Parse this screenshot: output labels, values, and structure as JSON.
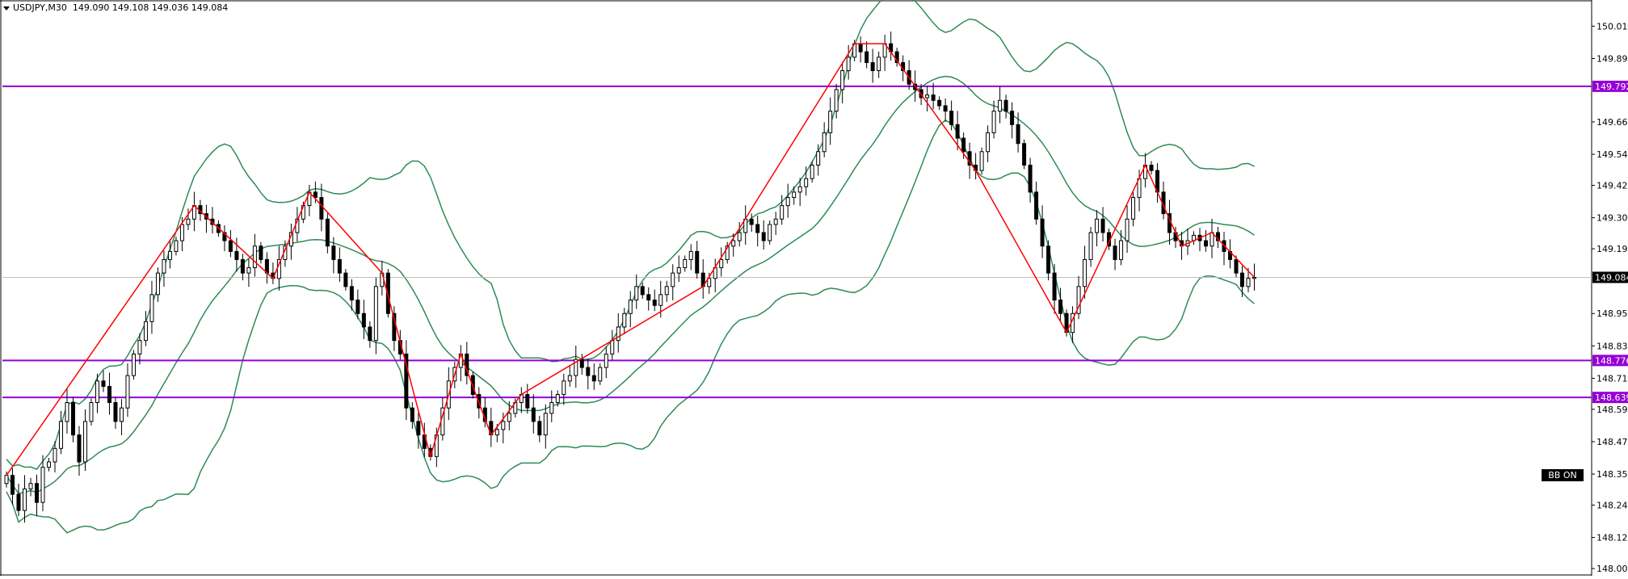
{
  "header": {
    "symbol": "USDJPY,M30",
    "ohlc": "149.090 149.108 149.036 149.084"
  },
  "badge": {
    "label": "BB ON"
  },
  "colors": {
    "background": "#ffffff",
    "candle_body_bull": "#ffffff",
    "candle_body_bear": "#000000",
    "candle_outline": "#000000",
    "zigzag": "#ff0000",
    "bollinger": "#2e8b57",
    "level_line": "#9400d3",
    "current_price_line": "#c0c0c0",
    "price_label_bg": "#000000"
  },
  "chart_data": {
    "type": "candlestick",
    "title": "USDJPY,M30",
    "ylim": [
      147.99,
      150.1
    ],
    "y_ticks": [
      "150.015",
      "149.895",
      "149.660",
      "149.540",
      "149.425",
      "149.305",
      "149.190",
      "148.950",
      "148.830",
      "148.710",
      "148.595",
      "148.475",
      "148.355",
      "148.240",
      "148.120",
      "148.005"
    ],
    "current_price": "149.084",
    "horizontal_levels": [
      "149.792",
      "148.776",
      "148.639"
    ],
    "grid": false,
    "candles_close_estimate": [
      148.35,
      148.28,
      148.22,
      148.3,
      148.32,
      148.25,
      148.38,
      148.4,
      148.45,
      148.55,
      148.62,
      148.5,
      148.4,
      148.55,
      148.62,
      148.7,
      148.68,
      148.62,
      148.55,
      148.6,
      148.72,
      148.8,
      148.85,
      148.92,
      149.02,
      149.1,
      149.15,
      149.18,
      149.22,
      149.28,
      149.3,
      149.35,
      149.32,
      149.3,
      149.28,
      149.25,
      149.22,
      149.18,
      149.15,
      149.1,
      149.12,
      149.2,
      149.15,
      149.1,
      149.08,
      149.15,
      149.2,
      149.25,
      149.3,
      149.35,
      149.4,
      149.38,
      149.3,
      149.2,
      149.15,
      149.1,
      149.05,
      149.0,
      148.95,
      148.9,
      148.85,
      149.05,
      149.1,
      148.95,
      148.85,
      148.8,
      148.6,
      148.55,
      148.5,
      148.45,
      148.42,
      148.5,
      148.6,
      148.7,
      148.75,
      148.8,
      148.72,
      148.65,
      148.6,
      148.55,
      148.5,
      148.52,
      148.55,
      148.58,
      148.62,
      148.65,
      148.6,
      148.55,
      148.5,
      148.58,
      148.62,
      148.65,
      148.7,
      148.72,
      148.78,
      148.75,
      148.72,
      148.7,
      148.75,
      148.8,
      148.85,
      148.9,
      148.95,
      149.0,
      149.05,
      149.02,
      149.0,
      148.98,
      149.02,
      149.05,
      149.1,
      149.12,
      149.15,
      149.18,
      149.1,
      149.05,
      149.08,
      149.12,
      149.15,
      149.2,
      149.22,
      149.25,
      149.3,
      149.28,
      149.25,
      149.22,
      149.28,
      149.3,
      149.35,
      149.38,
      149.4,
      149.42,
      149.45,
      149.5,
      149.55,
      149.62,
      149.7,
      149.78,
      149.85,
      149.9,
      149.95,
      149.92,
      149.88,
      149.85,
      149.9,
      149.95,
      149.92,
      149.88,
      149.85,
      149.8,
      149.78,
      149.75,
      149.76,
      149.74,
      149.72,
      149.7,
      149.65,
      149.6,
      149.55,
      149.5,
      149.48,
      149.55,
      149.62,
      149.7,
      149.74,
      149.7,
      149.65,
      149.58,
      149.5,
      149.4,
      149.3,
      149.2,
      149.1,
      149.0,
      148.95,
      148.88,
      148.95,
      149.05,
      149.15,
      149.25,
      149.3,
      149.25,
      149.2,
      149.15,
      149.22,
      149.3,
      149.38,
      149.45,
      149.5,
      149.48,
      149.4,
      149.32,
      149.25,
      149.22,
      149.2,
      149.22,
      149.24,
      149.22,
      149.2,
      149.25,
      149.22,
      149.18,
      149.15,
      149.1,
      149.05,
      149.08,
      149.084
    ]
  }
}
